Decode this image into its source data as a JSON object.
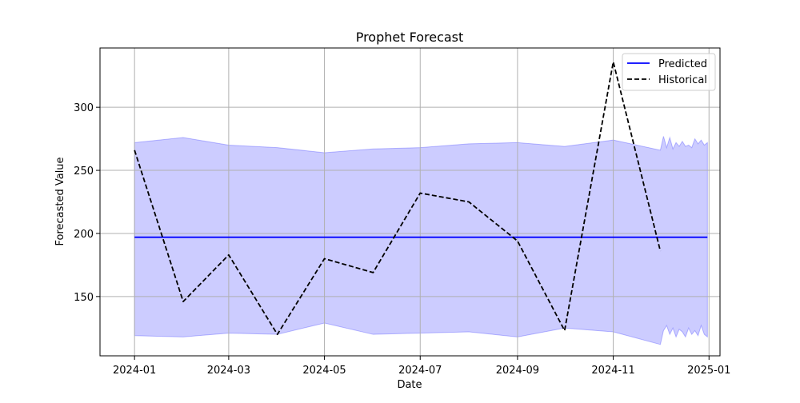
{
  "chart_data": {
    "type": "line",
    "title": "Prophet Forecast",
    "xlabel": "Date",
    "ylabel": "Forecasted Value",
    "xlim": [
      "2023-12-10",
      "2025-01-08"
    ],
    "ylim": [
      103,
      347
    ],
    "x_ticks": [
      "2024-01",
      "2024-03",
      "2024-05",
      "2024-07",
      "2024-09",
      "2024-11",
      "2025-01"
    ],
    "y_ticks": [
      150,
      200,
      250,
      300
    ],
    "grid": true,
    "legend_position": "top-right",
    "series": [
      {
        "name": "Predicted",
        "style": "solid",
        "color": "#0000ff",
        "x": [
          "2024-01-01",
          "2024-12-31"
        ],
        "y": [
          197,
          197
        ]
      },
      {
        "name": "Historical",
        "style": "dashed",
        "color": "#000000",
        "x": [
          "2024-01-01",
          "2024-02-01",
          "2024-03-01",
          "2024-04-01",
          "2024-05-01",
          "2024-06-01",
          "2024-07-01",
          "2024-08-01",
          "2024-09-01",
          "2024-10-01",
          "2024-11-01",
          "2024-12-01"
        ],
        "y": [
          266,
          146,
          183,
          120,
          180,
          169,
          232,
          225,
          194,
          123,
          336,
          186
        ]
      }
    ],
    "confidence_band": {
      "color": "#0000ff",
      "opacity": 0.2,
      "x": [
        "2024-01-01",
        "2024-02-01",
        "2024-03-01",
        "2024-04-01",
        "2024-05-01",
        "2024-06-01",
        "2024-07-01",
        "2024-08-01",
        "2024-09-01",
        "2024-10-01",
        "2024-11-01",
        "2024-12-01",
        "2024-12-03",
        "2024-12-05",
        "2024-12-07",
        "2024-12-09",
        "2024-12-11",
        "2024-12-13",
        "2024-12-15",
        "2024-12-17",
        "2024-12-19",
        "2024-12-21",
        "2024-12-23",
        "2024-12-25",
        "2024-12-27",
        "2024-12-29",
        "2024-12-31"
      ],
      "upper": [
        272,
        276,
        270,
        268,
        264,
        267,
        268,
        271,
        272,
        269,
        274,
        266,
        277,
        268,
        276,
        267,
        272,
        269,
        273,
        269,
        270,
        268,
        275,
        271,
        274,
        270,
        272
      ],
      "lower": [
        119,
        118,
        121,
        120,
        129,
        120,
        121,
        122,
        118,
        125,
        122,
        112,
        123,
        127,
        120,
        125,
        118,
        124,
        122,
        118,
        125,
        120,
        123,
        119,
        127,
        120,
        118
      ]
    }
  }
}
